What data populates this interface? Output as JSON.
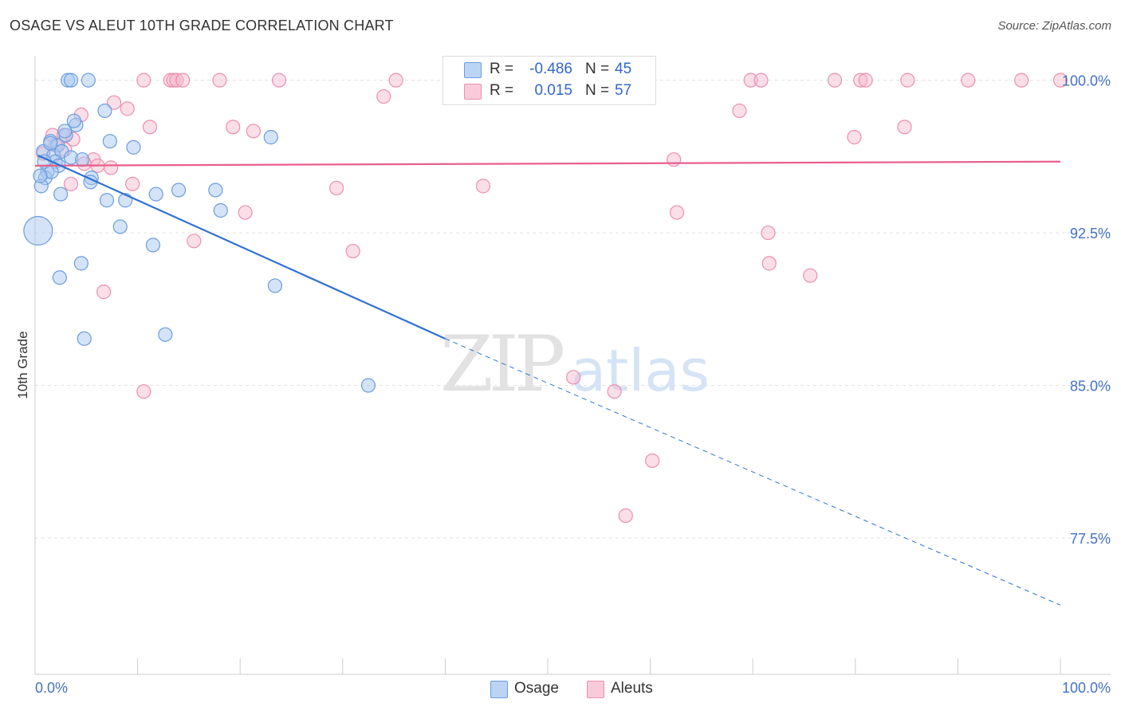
{
  "header": {
    "title": "OSAGE VS ALEUT 10TH GRADE CORRELATION CHART",
    "source": "Source: ZipAtlas.com"
  },
  "colors": {
    "osage_fill": "#a9c8f0",
    "osage_stroke": "#6b9de0",
    "osage_line": "#2f72d0",
    "aleut_fill": "#f6b8cc",
    "aleut_stroke": "#ec8fae",
    "aleut_line": "#e8608c",
    "grid": "#e3e3e3",
    "tick_label": "#4472c4"
  },
  "legend": {
    "rows": [
      {
        "r_label": "R =",
        "r_value": "-0.486",
        "n_label": "N =",
        "n_value": "45"
      },
      {
        "r_label": "R =",
        "r_value": "0.015",
        "n_label": "N =",
        "n_value": "57"
      }
    ]
  },
  "watermark": {
    "zip": "ZIP",
    "atlas": "atlas"
  },
  "chart_data": {
    "type": "scatter",
    "title": "OSAGE VS ALEUT 10TH GRADE CORRELATION CHART",
    "xlabel": "",
    "ylabel": "10th Grade",
    "xlim": [
      0,
      100
    ],
    "ylim": [
      70.8,
      101.2
    ],
    "x_tick_labels": [
      "0.0%",
      "100.0%"
    ],
    "y_ticks": [
      100.0,
      92.5,
      85.0,
      77.5
    ],
    "y_tick_labels": [
      "100.0%",
      "92.5%",
      "85.0%",
      "77.5%"
    ],
    "grid": true,
    "legend_position": "top-center",
    "series": [
      {
        "name": "Osage",
        "r": -0.486,
        "n": 45,
        "trend": {
          "x0": 0.3,
          "y0": 96.3,
          "x1": 40.0,
          "y1": 87.3,
          "dash_to_x": 100.0,
          "dash_to_y": 74.2
        },
        "points": [
          {
            "x": 3.2,
            "y": 100.0
          },
          {
            "x": 3.5,
            "y": 100.0
          },
          {
            "x": 5.2,
            "y": 100.0
          },
          {
            "x": 6.8,
            "y": 98.5
          },
          {
            "x": 4.0,
            "y": 97.8
          },
          {
            "x": 3.0,
            "y": 97.3
          },
          {
            "x": 1.5,
            "y": 97.0
          },
          {
            "x": 2.2,
            "y": 96.8
          },
          {
            "x": 0.8,
            "y": 96.5
          },
          {
            "x": 1.8,
            "y": 96.3
          },
          {
            "x": 2.6,
            "y": 96.5
          },
          {
            "x": 3.5,
            "y": 96.2
          },
          {
            "x": 2.0,
            "y": 96.0
          },
          {
            "x": 2.3,
            "y": 95.8
          },
          {
            "x": 1.2,
            "y": 95.5
          },
          {
            "x": 1.0,
            "y": 95.2
          },
          {
            "x": 0.6,
            "y": 94.8
          },
          {
            "x": 7.3,
            "y": 97.0
          },
          {
            "x": 9.6,
            "y": 96.7
          },
          {
            "x": 4.6,
            "y": 96.1
          },
          {
            "x": 5.5,
            "y": 95.2
          },
          {
            "x": 5.4,
            "y": 95.0
          },
          {
            "x": 2.5,
            "y": 94.4
          },
          {
            "x": 7.0,
            "y": 94.1
          },
          {
            "x": 8.8,
            "y": 94.1
          },
          {
            "x": 11.8,
            "y": 94.4
          },
          {
            "x": 14.0,
            "y": 94.6
          },
          {
            "x": 17.6,
            "y": 94.6
          },
          {
            "x": 18.1,
            "y": 93.6
          },
          {
            "x": 23.0,
            "y": 97.2
          },
          {
            "x": 0.3,
            "y": 92.6
          },
          {
            "x": 8.3,
            "y": 92.8
          },
          {
            "x": 11.5,
            "y": 91.9
          },
          {
            "x": 4.5,
            "y": 91.0
          },
          {
            "x": 2.4,
            "y": 90.3
          },
          {
            "x": 23.4,
            "y": 89.9
          },
          {
            "x": 4.8,
            "y": 87.3
          },
          {
            "x": 12.7,
            "y": 87.5
          },
          {
            "x": 32.5,
            "y": 85.0
          },
          {
            "x": 1.5,
            "y": 96.9
          },
          {
            "x": 0.9,
            "y": 96.0
          },
          {
            "x": 2.9,
            "y": 97.5
          },
          {
            "x": 3.8,
            "y": 98.0
          },
          {
            "x": 1.6,
            "y": 95.5
          },
          {
            "x": 0.5,
            "y": 95.3
          }
        ]
      },
      {
        "name": "Aleuts",
        "r": 0.015,
        "n": 57,
        "trend": {
          "x0": 0.0,
          "y0": 95.8,
          "x1": 100.0,
          "y1": 96.0
        },
        "points": [
          {
            "x": 10.6,
            "y": 100.0
          },
          {
            "x": 13.2,
            "y": 100.0
          },
          {
            "x": 13.5,
            "y": 100.0
          },
          {
            "x": 13.8,
            "y": 100.0
          },
          {
            "x": 14.4,
            "y": 100.0
          },
          {
            "x": 18.0,
            "y": 100.0
          },
          {
            "x": 23.8,
            "y": 100.0
          },
          {
            "x": 35.2,
            "y": 100.0
          },
          {
            "x": 47.5,
            "y": 100.0
          },
          {
            "x": 58.2,
            "y": 100.0
          },
          {
            "x": 69.8,
            "y": 100.0
          },
          {
            "x": 70.8,
            "y": 100.0
          },
          {
            "x": 78.0,
            "y": 100.0
          },
          {
            "x": 80.5,
            "y": 100.0
          },
          {
            "x": 81.0,
            "y": 100.0
          },
          {
            "x": 85.1,
            "y": 100.0
          },
          {
            "x": 91.0,
            "y": 100.0
          },
          {
            "x": 96.2,
            "y": 100.0
          },
          {
            "x": 100.0,
            "y": 100.0
          },
          {
            "x": 34.0,
            "y": 99.2
          },
          {
            "x": 7.7,
            "y": 98.9
          },
          {
            "x": 9.0,
            "y": 98.6
          },
          {
            "x": 4.5,
            "y": 98.3
          },
          {
            "x": 11.2,
            "y": 97.7
          },
          {
            "x": 19.3,
            "y": 97.7
          },
          {
            "x": 21.3,
            "y": 97.5
          },
          {
            "x": 68.7,
            "y": 98.5
          },
          {
            "x": 84.8,
            "y": 97.7
          },
          {
            "x": 79.9,
            "y": 97.2
          },
          {
            "x": 1.7,
            "y": 97.3
          },
          {
            "x": 2.8,
            "y": 97.3
          },
          {
            "x": 3.7,
            "y": 97.1
          },
          {
            "x": 2.0,
            "y": 96.8
          },
          {
            "x": 2.9,
            "y": 96.6
          },
          {
            "x": 0.8,
            "y": 96.4
          },
          {
            "x": 5.7,
            "y": 96.1
          },
          {
            "x": 4.8,
            "y": 95.9
          },
          {
            "x": 6.1,
            "y": 95.8
          },
          {
            "x": 7.4,
            "y": 95.7
          },
          {
            "x": 62.3,
            "y": 96.1
          },
          {
            "x": 3.5,
            "y": 94.9
          },
          {
            "x": 9.5,
            "y": 94.9
          },
          {
            "x": 29.4,
            "y": 94.7
          },
          {
            "x": 43.7,
            "y": 94.8
          },
          {
            "x": 20.5,
            "y": 93.5
          },
          {
            "x": 62.6,
            "y": 93.5
          },
          {
            "x": 71.5,
            "y": 92.5
          },
          {
            "x": 15.5,
            "y": 92.1
          },
          {
            "x": 31.0,
            "y": 91.6
          },
          {
            "x": 71.6,
            "y": 91.0
          },
          {
            "x": 75.6,
            "y": 90.4
          },
          {
            "x": 6.7,
            "y": 89.6
          },
          {
            "x": 52.5,
            "y": 85.4
          },
          {
            "x": 56.5,
            "y": 84.7
          },
          {
            "x": 10.6,
            "y": 84.7
          },
          {
            "x": 60.2,
            "y": 81.3
          },
          {
            "x": 57.6,
            "y": 78.6
          }
        ]
      }
    ]
  },
  "bottom_legend": {
    "items": [
      {
        "label": "Osage"
      },
      {
        "label": "Aleuts"
      }
    ]
  }
}
